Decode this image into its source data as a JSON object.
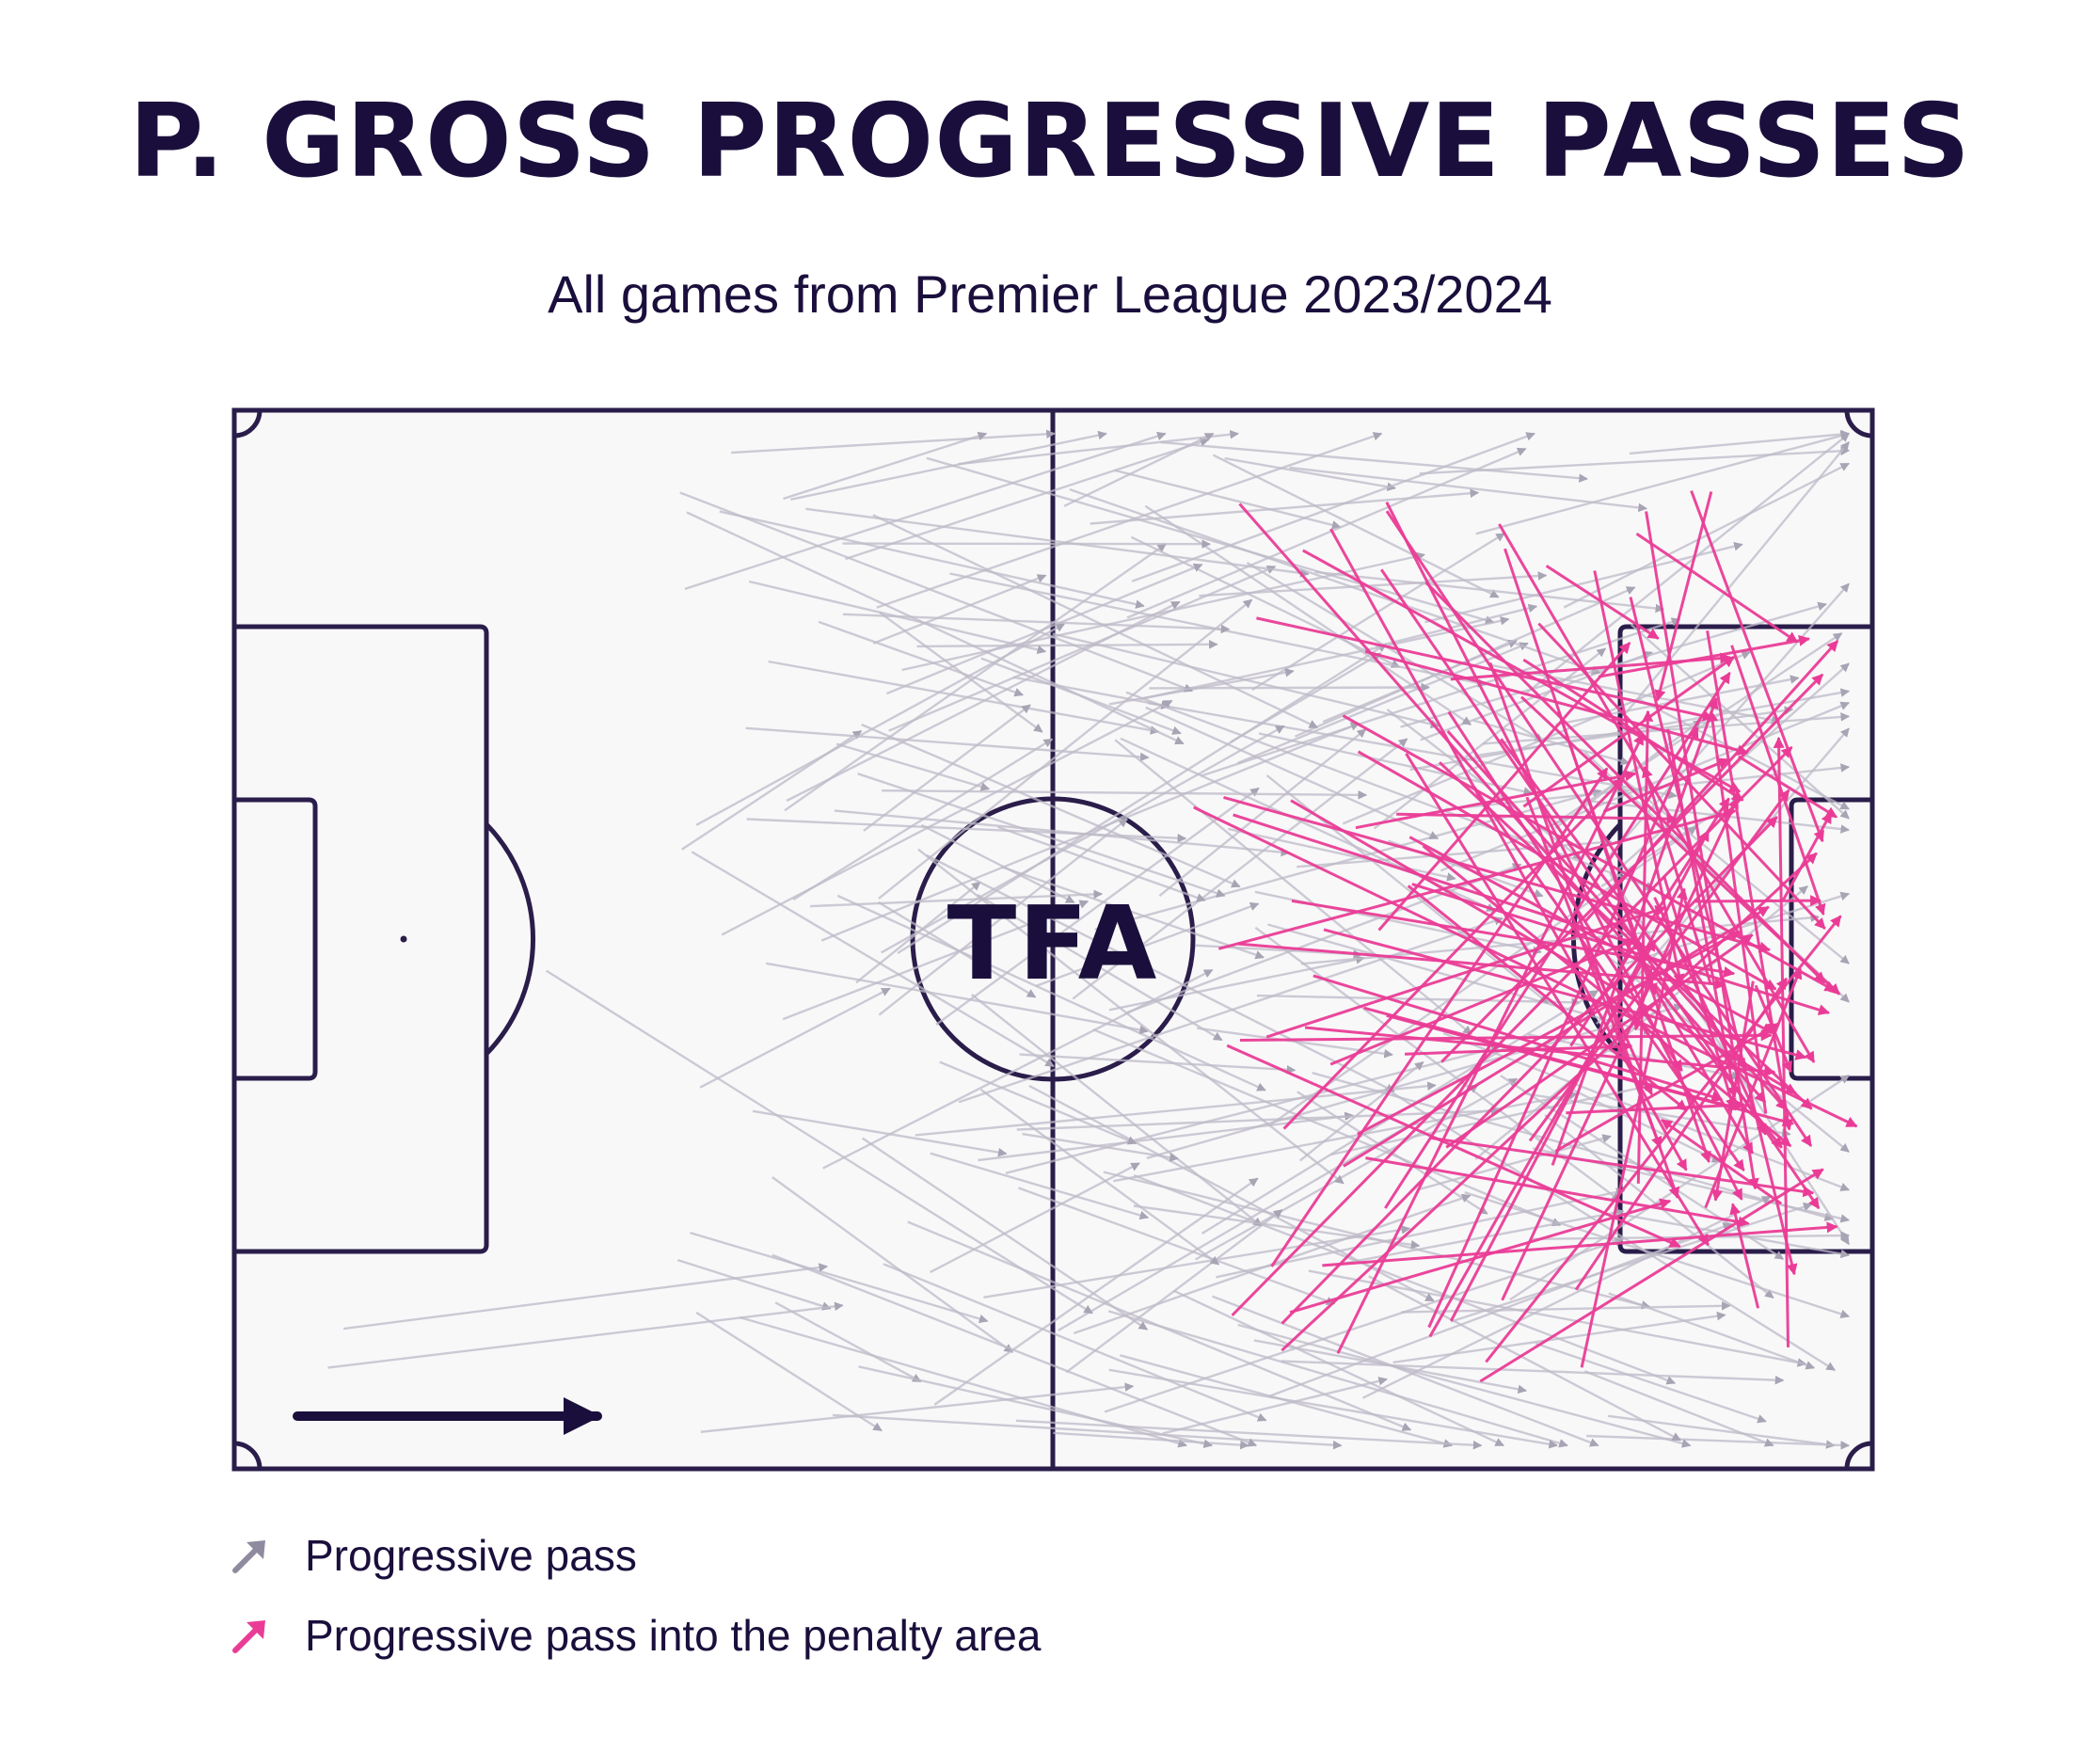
{
  "title": "P. GROSS PROGRESSIVE PASSES",
  "subtitle": "All games from Premier League 2023/2024",
  "logo_text": "TFA",
  "legend": [
    {
      "label": "Progressive pass",
      "color": "#8f8a9e"
    },
    {
      "label": "Progressive pass into the penalty area",
      "color": "#ea3c96"
    }
  ],
  "colors": {
    "pitch_line": "#2a1d4a",
    "pitch_fill": "#f8f8f9",
    "progressive_pass": "#bdb9c7",
    "penalty_area_pass": "#ea3c96",
    "title": "#1a0f3c"
  },
  "chart_data": {
    "type": "pass_map",
    "attack_direction": "left-to-right",
    "pitch": {
      "length": 105,
      "width": 68
    },
    "series": [
      {
        "name": "Progressive pass",
        "count_shown": "approx. 230",
        "color": "#bdb9c7"
      },
      {
        "name": "Progressive pass into the penalty area",
        "count_shown": "approx. 110",
        "color": "#ea3c96"
      }
    ],
    "passes_sample_into_box": [
      [
        68.5,
        9.0,
        96.5,
        24.5
      ],
      [
        61.5,
        25.5,
        104.0,
        46.0
      ],
      [
        66.5,
        55.0,
        88.0,
        23.0
      ],
      [
        72.5,
        15.5,
        97.0,
        22.0
      ],
      [
        84.5,
        48.5,
        95.0,
        18.5
      ],
      [
        90.5,
        6.5,
        97.5,
        50.0
      ],
      [
        78.0,
        58.5,
        94.5,
        27.0
      ],
      [
        86.0,
        56.5,
        99.5,
        36.5
      ],
      [
        72.0,
        46.5,
        96.5,
        33.5
      ],
      [
        89.5,
        12.0,
        100.0,
        55.5
      ]
    ]
  }
}
